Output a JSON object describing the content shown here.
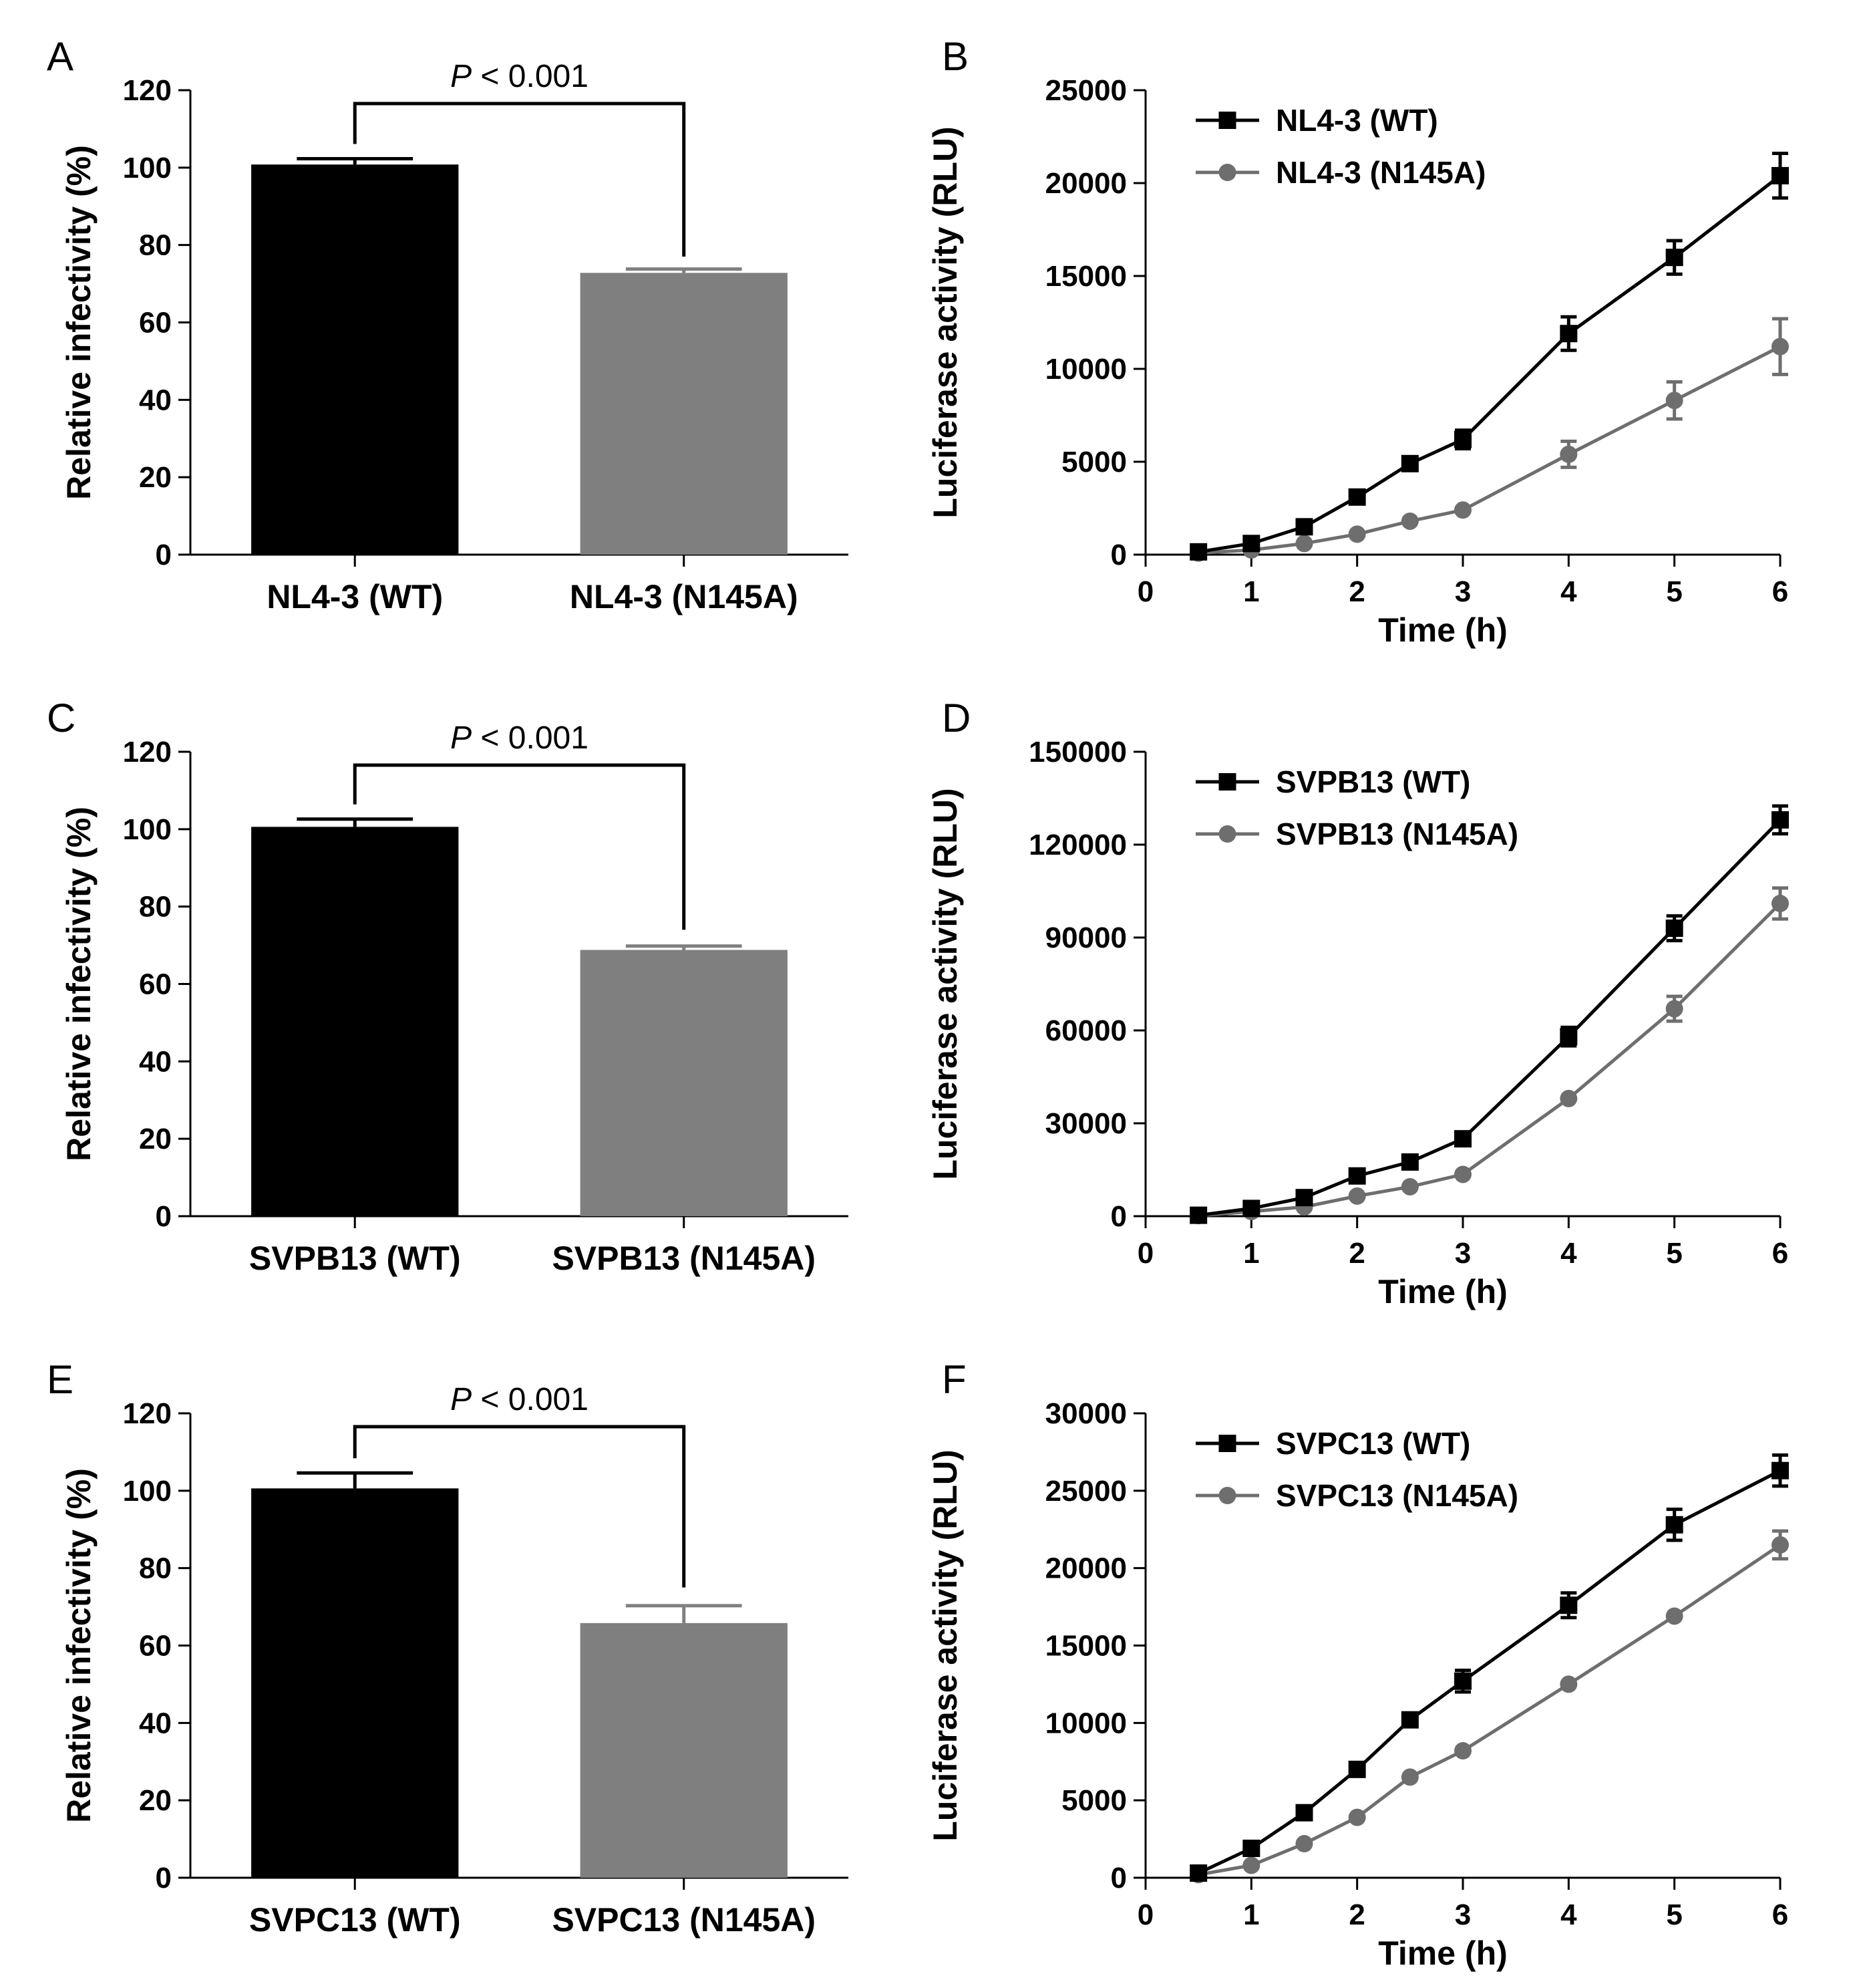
{
  "figure": {
    "colors": {
      "black": "#000000",
      "gray": "#7f7f7f",
      "gray_line": "#6e6e6e"
    }
  },
  "chart_data": [
    {
      "panel": "A",
      "type": "bar",
      "categories": [
        "NL4-3 (WT)",
        "NL4-3 (N145A)"
      ],
      "values": [
        100.8,
        72.8
      ],
      "errors": [
        1.5,
        1.0
      ],
      "colors": [
        "#000000",
        "#7f7f7f"
      ],
      "ylabel": "Relative infectivity (%)",
      "ylim": [
        0,
        120
      ],
      "yticks": [
        0,
        20,
        40,
        60,
        80,
        100,
        120
      ],
      "annotation": {
        "italic": "P",
        "text": " < 0.001",
        "bracket_left_top": 117,
        "bracket_right_top": 77
      }
    },
    {
      "panel": "B",
      "type": "line",
      "x": [
        0.5,
        1,
        1.5,
        2,
        2.5,
        3,
        4,
        5,
        6
      ],
      "series": [
        {
          "name": "NL4-3 (WT)",
          "marker": "square",
          "color": "#000000",
          "values": [
            150,
            600,
            1500,
            3100,
            4900,
            6200,
            11900,
            16000,
            20400
          ],
          "errors": [
            80,
            150,
            200,
            250,
            300,
            500,
            900,
            900,
            1200
          ]
        },
        {
          "name": "NL4-3 (N145A)",
          "marker": "circle",
          "color": "#6e6e6e",
          "values": [
            80,
            250,
            600,
            1100,
            1800,
            2400,
            5400,
            8300,
            11200
          ],
          "errors": [
            60,
            100,
            150,
            200,
            200,
            250,
            700,
            1000,
            1500
          ]
        }
      ],
      "xlabel": "Time  (h)",
      "ylabel": "Luciferase activity (RLU)",
      "xlim": [
        0,
        6
      ],
      "ylim": [
        0,
        25000
      ],
      "xticks": [
        0,
        1,
        2,
        3,
        4,
        5,
        6
      ],
      "yticks": [
        0,
        5000,
        10000,
        15000,
        20000,
        25000
      ],
      "legend": "top-left"
    },
    {
      "panel": "C",
      "type": "bar",
      "categories": [
        "SVPB13 (WT)",
        "SVPB13 (N145A)"
      ],
      "values": [
        100.6,
        68.8
      ],
      "errors": [
        2.0,
        1.0
      ],
      "colors": [
        "#000000",
        "#7f7f7f"
      ],
      "ylabel": "Relative infectivity (%)",
      "ylim": [
        0,
        120
      ],
      "yticks": [
        0,
        20,
        40,
        60,
        80,
        100,
        120
      ],
      "annotation": {
        "italic": "P",
        "text": " < 0.001",
        "bracket_left_top": 116,
        "bracket_right_top": 74
      }
    },
    {
      "panel": "D",
      "type": "line",
      "x": [
        0.5,
        1,
        1.5,
        2,
        2.5,
        3,
        4,
        5,
        6
      ],
      "series": [
        {
          "name": "SVPB13 (WT)",
          "marker": "square",
          "color": "#000000",
          "values": [
            300,
            2500,
            6000,
            13000,
            17500,
            25000,
            58000,
            93000,
            128000
          ],
          "errors": [
            200,
            500,
            800,
            1000,
            1200,
            1500,
            3000,
            4000,
            4500
          ]
        },
        {
          "name": "SVPB13 (N145A)",
          "marker": "circle",
          "color": "#6e6e6e",
          "values": [
            200,
            1500,
            3000,
            6500,
            9500,
            13500,
            38000,
            67000,
            101000
          ],
          "errors": [
            150,
            400,
            500,
            800,
            900,
            1200,
            1500,
            4000,
            5000
          ]
        }
      ],
      "xlabel": "Time  (h)",
      "ylabel": "Luciferase activity (RLU)",
      "xlim": [
        0,
        6
      ],
      "ylim": [
        0,
        150000
      ],
      "xticks": [
        0,
        1,
        2,
        3,
        4,
        5,
        6
      ],
      "yticks": [
        0,
        30000,
        60000,
        90000,
        120000,
        150000
      ],
      "legend": "top-left"
    },
    {
      "panel": "E",
      "type": "bar",
      "categories": [
        "SVPC13 (WT)",
        "SVPC13 (N145A)"
      ],
      "values": [
        100.6,
        65.8
      ],
      "errors": [
        4.0,
        4.5
      ],
      "colors": [
        "#000000",
        "#7f7f7f"
      ],
      "ylabel": "Relative infectivity (%)",
      "ylim": [
        0,
        120
      ],
      "yticks": [
        0,
        20,
        40,
        60,
        80,
        100,
        120
      ],
      "annotation": {
        "italic": "P",
        "text": " < 0.001",
        "bracket_left_top": 118,
        "bracket_right_top": 75
      }
    },
    {
      "panel": "F",
      "type": "line",
      "x": [
        0.5,
        1,
        1.5,
        2,
        2.5,
        3,
        4,
        5,
        6
      ],
      "series": [
        {
          "name": "SVPC13 (WT)",
          "marker": "square",
          "color": "#000000",
          "values": [
            300,
            1900,
            4200,
            7000,
            10200,
            12700,
            17600,
            22800,
            26300
          ],
          "errors": [
            150,
            200,
            300,
            300,
            300,
            700,
            800,
            1000,
            1000
          ]
        },
        {
          "name": "SVPC13 (N145A)",
          "marker": "circle",
          "color": "#6e6e6e",
          "values": [
            200,
            800,
            2200,
            3900,
            6500,
            8200,
            12500,
            16900,
            21500
          ],
          "errors": [
            150,
            150,
            200,
            200,
            200,
            200,
            300,
            300,
            900
          ]
        }
      ],
      "xlabel": "Time  (h)",
      "ylabel": "Luciferase activity (RLU)",
      "xlim": [
        0,
        6
      ],
      "ylim": [
        0,
        30000
      ],
      "xticks": [
        0,
        1,
        2,
        3,
        4,
        5,
        6
      ],
      "yticks": [
        0,
        5000,
        10000,
        15000,
        20000,
        25000,
        30000
      ],
      "legend": "top-left"
    }
  ]
}
